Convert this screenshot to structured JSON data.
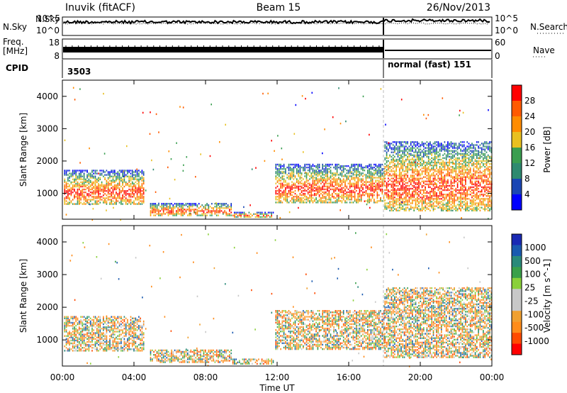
{
  "header": {
    "station": "Inuvik (fitACF)",
    "beam": "Beam 15",
    "date": "26/Nov/2013"
  },
  "meta_panels": {
    "nsky_label": "N.Sky",
    "nsky_ticks": [
      "10^5",
      "10^0"
    ],
    "nsearch_label": "N.Search",
    "nsearch_ticks": [
      "10^5",
      "10^0"
    ],
    "freq_label_1": "Freq.",
    "freq_label_2": "[MHz]",
    "freq_ticks": [
      "18",
      "8"
    ],
    "nave_label": "Nave",
    "nave_ticks": [
      "60",
      "0"
    ],
    "cpid_label": "CPID",
    "cpid_segments": [
      {
        "start_hour": 0,
        "end_hour": 18,
        "label": "3503"
      },
      {
        "start_hour": 18,
        "end_hour": 24,
        "label": "normal (fast) 151"
      }
    ]
  },
  "colors": {
    "power_scale": [
      "#0000ff",
      "#1a46b4",
      "#2e8a6f",
      "#3a9e50",
      "#e8c020",
      "#ff8c00",
      "#ff5a00",
      "#ff0000"
    ],
    "velocity_scale": [
      "#ff0000",
      "#ff4a00",
      "#ff8c1a",
      "#f0a030",
      "#c8c8c8",
      "#c8c8c8",
      "#8ad03a",
      "#3aa04a",
      "#2a8a7a",
      "#1a5ab0",
      "#1a2ab4"
    ]
  },
  "chart_data": [
    {
      "type": "heatmap",
      "title": "Power",
      "ylabel": "Slant Range [km]",
      "xlabel": "",
      "yticks": [
        "1000",
        "2000",
        "3000",
        "4000"
      ],
      "ylim": [
        200,
        4500
      ],
      "xlim": [
        0,
        24
      ],
      "colorbar_label": "Power [dB]",
      "colorbar_ticks": [
        "4",
        "8",
        "12",
        "16",
        "20",
        "24",
        "28"
      ],
      "colorbar_range": [
        0,
        32
      ],
      "echo_regions": [
        {
          "x0": 0.1,
          "x1": 4.6,
          "r0": 650,
          "r1": 1750,
          "level": 24
        },
        {
          "x0": 4.9,
          "x1": 9.5,
          "r0": 300,
          "r1": 700,
          "level": 26
        },
        {
          "x0": 9.5,
          "x1": 11.8,
          "r0": 250,
          "r1": 450,
          "level": 26
        },
        {
          "x0": 11.9,
          "x1": 18.0,
          "r0": 700,
          "r1": 1900,
          "level": 25
        },
        {
          "x0": 18.0,
          "x1": 24.0,
          "r0": 450,
          "r1": 2600,
          "level": 22
        }
      ]
    },
    {
      "type": "heatmap",
      "title": "Velocity",
      "ylabel": "Slant Range [km]",
      "xlabel": "Time UT",
      "yticks": [
        "1000",
        "2000",
        "3000",
        "4000"
      ],
      "ylim": [
        200,
        4500
      ],
      "xticks": [
        "00:00",
        "04:00",
        "08:00",
        "12:00",
        "16:00",
        "20:00",
        "00:00"
      ],
      "xlim": [
        0,
        24
      ],
      "colorbar_label": "Velocity [m s^-1]",
      "colorbar_ticks": [
        "1000",
        "500",
        "100",
        "25",
        "-25",
        "-100",
        "-500",
        "-1000"
      ],
      "echo_regions": [
        {
          "x0": 0.1,
          "x1": 4.6,
          "r0": 650,
          "r1": 1750,
          "level": -100
        },
        {
          "x0": 4.9,
          "x1": 9.5,
          "r0": 300,
          "r1": 700,
          "level": -300
        },
        {
          "x0": 9.5,
          "x1": 11.8,
          "r0": 250,
          "r1": 450,
          "level": -300
        },
        {
          "x0": 11.9,
          "x1": 18.0,
          "r0": 700,
          "r1": 1900,
          "level": -100
        },
        {
          "x0": 18.0,
          "x1": 24.0,
          "r0": 450,
          "r1": 2600,
          "level": 0
        }
      ]
    }
  ]
}
